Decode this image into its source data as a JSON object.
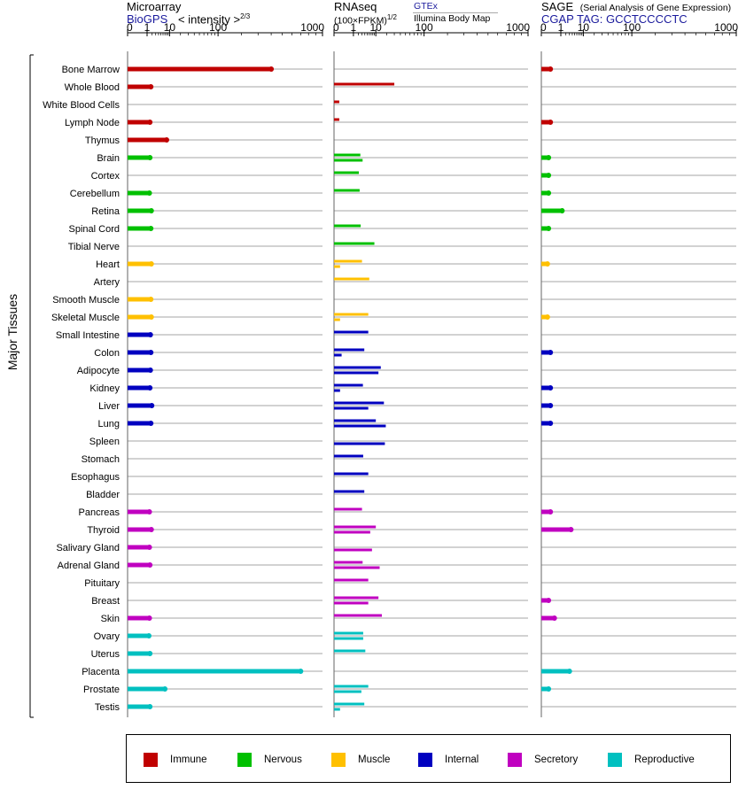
{
  "panels": [
    {
      "id": "microarray",
      "title": "Microarray",
      "subtitle": "BioGPS",
      "scale_label": "< intensity >",
      "scale_exponent": "2/3",
      "ticks": [
        "0",
        "1",
        "10",
        "100",
        "1000"
      ]
    },
    {
      "id": "rnaseq",
      "title": "RNAseq",
      "unit_label": "(100×FPKM)",
      "unit_exponent": "1/2",
      "source_1": "GTEx",
      "source_2": "Illumina Body Map",
      "ticks": [
        "0",
        "1",
        "10",
        "100",
        "1000"
      ]
    },
    {
      "id": "sage",
      "title": "SAGE",
      "title_note": "(Serial Analysis of Gene Expression)",
      "subtitle": "CGAP TAG: GCCTCCCCTC",
      "ticks": [
        "0",
        "1",
        "10",
        "100",
        "1000"
      ]
    }
  ],
  "y_group_label": "Major Tissues",
  "colors": {
    "Immune": "#c00000",
    "Nervous": "#00c000",
    "Muscle": "#ffc000",
    "Internal": "#0000c0",
    "Secretory": "#c000c0",
    "Reproductive": "#00c0c0"
  },
  "legend": [
    {
      "label": "Immune",
      "color": "#c00000"
    },
    {
      "label": "Nervous",
      "color": "#00c000"
    },
    {
      "label": "Muscle",
      "color": "#ffc000"
    },
    {
      "label": "Internal",
      "color": "#0000c0"
    },
    {
      "label": "Secretory",
      "color": "#c000c0"
    },
    {
      "label": "Reproductive",
      "color": "#00c0c0"
    }
  ],
  "chart_data": {
    "type": "bar",
    "orientation": "horizontal",
    "x_scale": "log",
    "xlim": [
      0,
      1000
    ],
    "categories": [
      "Bone Marrow",
      "Whole Blood",
      "White Blood Cells",
      "Lymph Node",
      "Thymus",
      "Brain",
      "Cortex",
      "Cerebellum",
      "Retina",
      "Spinal Cord",
      "Tibial Nerve",
      "Heart",
      "Artery",
      "Smooth Muscle",
      "Skeletal Muscle",
      "Small Intestine",
      "Colon",
      "Adipocyte",
      "Kidney",
      "Liver",
      "Lung",
      "Spleen",
      "Stomach",
      "Esophagus",
      "Bladder",
      "Pancreas",
      "Thyroid",
      "Salivary Gland",
      "Adrenal Gland",
      "Pituitary",
      "Breast",
      "Skin",
      "Ovary",
      "Uterus",
      "Placenta",
      "Prostate",
      "Testis"
    ],
    "groups": [
      "Immune",
      "Immune",
      "Immune",
      "Immune",
      "Immune",
      "Nervous",
      "Nervous",
      "Nervous",
      "Nervous",
      "Nervous",
      "Nervous",
      "Muscle",
      "Muscle",
      "Muscle",
      "Muscle",
      "Internal",
      "Internal",
      "Internal",
      "Internal",
      "Internal",
      "Internal",
      "Internal",
      "Internal",
      "Internal",
      "Internal",
      "Secretory",
      "Secretory",
      "Secretory",
      "Secretory",
      "Secretory",
      "Secretory",
      "Secretory",
      "Reproductive",
      "Reproductive",
      "Reproductive",
      "Reproductive",
      "Reproductive"
    ],
    "series": [
      {
        "name": "Microarray",
        "values": [
          400,
          1.7,
          null,
          1.5,
          8,
          1.5,
          null,
          1.4,
          1.8,
          1.7,
          null,
          1.8,
          null,
          1.7,
          1.8,
          1.6,
          1.7,
          1.6,
          1.5,
          1.9,
          1.7,
          null,
          null,
          null,
          null,
          1.4,
          1.8,
          1.4,
          1.5,
          null,
          null,
          1.4,
          1.3,
          1.5,
          700,
          7,
          1.5
        ]
      },
      {
        "name": "GTEx",
        "values": [
          null,
          30,
          0.02,
          0.02,
          null,
          2.5,
          2.1,
          2.3,
          null,
          2.6,
          9,
          3,
          6,
          null,
          5.5,
          5.5,
          3.8,
          14,
          3.3,
          17,
          10,
          null,
          3.4,
          5.5,
          3.8,
          3,
          10,
          null,
          3.2,
          5.5,
          12,
          15,
          3.4,
          4.2,
          null,
          5.5,
          3.8
        ]
      },
      {
        "name": "Illumina Body Map",
        "values": [
          null,
          null,
          null,
          null,
          null,
          3.2,
          null,
          null,
          null,
          null,
          null,
          0.03,
          null,
          null,
          0.03,
          null,
          0.06,
          12,
          0.03,
          5.5,
          19,
          18,
          null,
          null,
          null,
          null,
          6.5,
          7.5,
          13,
          null,
          5.5,
          null,
          3.4,
          null,
          null,
          2.8,
          0.03
        ]
      },
      {
        "name": "SAGE",
        "values": [
          0.1,
          null,
          null,
          0.1,
          null,
          0.05,
          0.05,
          0.05,
          1.2,
          0.05,
          null,
          0.03,
          null,
          null,
          0.03,
          null,
          0.1,
          null,
          0.1,
          0.1,
          0.1,
          null,
          null,
          null,
          null,
          0.1,
          3.5,
          null,
          null,
          null,
          0.05,
          0.3,
          null,
          null,
          3,
          0.05,
          null
        ]
      }
    ]
  }
}
